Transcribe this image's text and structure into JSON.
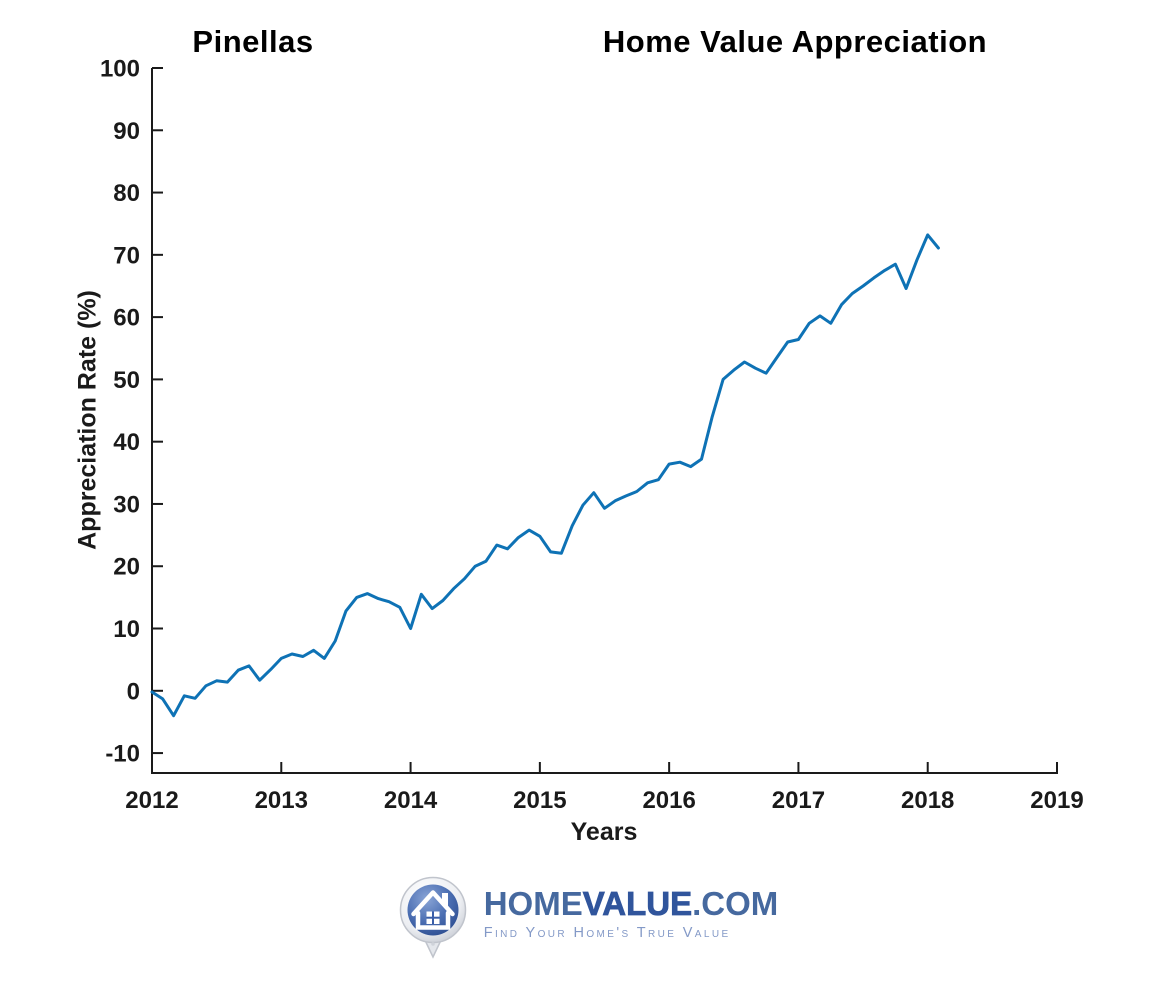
{
  "titles": {
    "left": "Pinellas",
    "right": "Home Value Appreciation"
  },
  "axes": {
    "xlabel": "Years",
    "ylabel": "Appreciation Rate (%)",
    "x_ticks": [
      2012,
      2013,
      2014,
      2015,
      2016,
      2017,
      2018,
      2019
    ],
    "y_ticks": [
      -10,
      0,
      10,
      20,
      30,
      40,
      50,
      60,
      70,
      80,
      90,
      100
    ],
    "axis_color": "#1a1a1a"
  },
  "chart_data": {
    "type": "line",
    "title": "Pinellas Home Value Appreciation",
    "xlabel": "Years",
    "ylabel": "Appreciation Rate (%)",
    "xlim": [
      2012,
      2019
    ],
    "ylim": [
      -13.2,
      100
    ],
    "grid": false,
    "legend": "none",
    "line_color": "#0e72b5",
    "x": [
      2012.0,
      2012.083,
      2012.167,
      2012.25,
      2012.333,
      2012.417,
      2012.5,
      2012.583,
      2012.667,
      2012.75,
      2012.833,
      2012.917,
      2013.0,
      2013.083,
      2013.167,
      2013.25,
      2013.333,
      2013.417,
      2013.5,
      2013.583,
      2013.667,
      2013.75,
      2013.833,
      2013.917,
      2014.0,
      2014.083,
      2014.167,
      2014.25,
      2014.333,
      2014.417,
      2014.5,
      2014.583,
      2014.667,
      2014.75,
      2014.833,
      2014.917,
      2015.0,
      2015.083,
      2015.167,
      2015.25,
      2015.333,
      2015.417,
      2015.5,
      2015.583,
      2015.667,
      2015.75,
      2015.833,
      2015.917,
      2016.0,
      2016.083,
      2016.167,
      2016.25,
      2016.333,
      2016.417,
      2016.5,
      2016.583,
      2016.667,
      2016.75,
      2016.833,
      2016.917,
      2017.0,
      2017.083,
      2017.167,
      2017.25,
      2017.333,
      2017.417,
      2017.5,
      2017.583,
      2017.667,
      2017.75,
      2017.833,
      2017.917,
      2018.0,
      2018.083
    ],
    "y": [
      -0.2,
      -1.3,
      -4.0,
      -0.8,
      -1.2,
      0.8,
      1.6,
      1.4,
      3.3,
      4.0,
      1.7,
      3.4,
      5.2,
      5.9,
      5.5,
      6.5,
      5.2,
      8.0,
      12.8,
      15.0,
      15.6,
      14.8,
      14.3,
      13.4,
      10.0,
      15.5,
      13.2,
      14.5,
      16.4,
      18.0,
      20.0,
      20.8,
      23.4,
      22.8,
      24.6,
      25.8,
      24.8,
      22.3,
      22.1,
      26.5,
      29.8,
      31.8,
      29.3,
      30.5,
      31.3,
      32.0,
      33.4,
      33.9,
      36.4,
      36.7,
      36.0,
      37.2,
      44.0,
      50.0,
      51.5,
      52.8,
      51.8,
      51.0,
      53.5,
      56.0,
      56.4,
      59.0,
      60.2,
      59.0,
      62.0,
      63.8,
      65.0,
      66.3,
      67.5,
      68.5,
      64.6,
      69.2,
      73.2,
      71.1
    ]
  },
  "logo": {
    "icon": "house-pin-icon",
    "brand_home": "HOME",
    "brand_value": "VALUE",
    "brand_tld": ".COM",
    "tagline": "Find Your Home's True Value",
    "brand_color": "#30559c",
    "tagline_color": "#8399c7"
  }
}
